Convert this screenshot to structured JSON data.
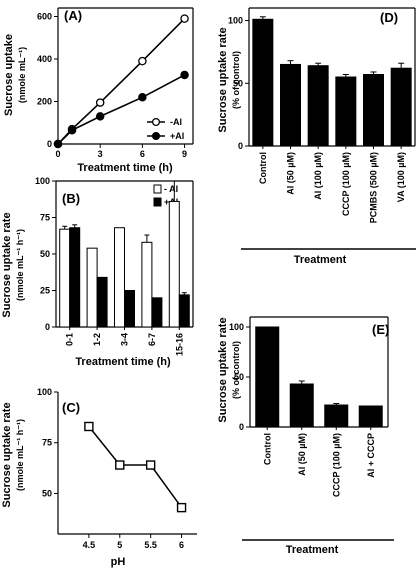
{
  "chart_data": [
    {
      "panel": "(A)",
      "type": "line",
      "xlabel": "Treatment time (h)",
      "ylabel": "Sucrose uptake",
      "yunit": "(nmole mL⁻¹)",
      "xlim": [
        0,
        9.6
      ],
      "ylim": [
        0,
        640
      ],
      "xticks": [
        0,
        3,
        6,
        9
      ],
      "yticks": [
        0,
        200,
        400,
        600
      ],
      "legend_position": "bottom-right",
      "series": [
        {
          "name": "-Al",
          "marker": "open",
          "x": [
            0,
            1,
            3,
            6,
            9
          ],
          "y": [
            0,
            70,
            195,
            390,
            590
          ],
          "err": [
            0,
            0,
            0,
            0,
            0
          ]
        },
        {
          "name": "+Al",
          "marker": "filled",
          "x": [
            0,
            1,
            3,
            6,
            9
          ],
          "y": [
            0,
            65,
            130,
            220,
            325
          ],
          "err": [
            0,
            0,
            12,
            10,
            0
          ]
        }
      ]
    },
    {
      "panel": "(B)",
      "type": "bar",
      "xlabel": "Treatment time (h)",
      "ylabel": "Sucrose uptake rate",
      "yunit": "(nmole mL⁻¹ h⁻¹)",
      "ylim": [
        0,
        100
      ],
      "yticks": [
        0,
        25,
        50,
        75,
        100
      ],
      "categories": [
        "0-1",
        "1-2",
        "3-4",
        "6-7",
        "15-16"
      ],
      "legend_position": "top-right",
      "series": [
        {
          "name": "- Al",
          "fill": "#ffffff",
          "values": [
            67,
            54,
            68,
            58,
            86
          ],
          "err": [
            2,
            0,
            0,
            5,
            14
          ]
        },
        {
          "name": "+Al",
          "fill": "#000000",
          "values": [
            68,
            34,
            25,
            20,
            22
          ],
          "err": [
            2,
            0,
            0,
            0,
            1.5
          ]
        }
      ]
    },
    {
      "panel": "(C)",
      "type": "line",
      "xlabel": "pH",
      "ylabel": "Sucrose uptake rate",
      "yunit": "(nmole mL⁻¹ h⁻¹)",
      "xlim": [
        4.0,
        6.25
      ],
      "ylim": [
        30,
        100
      ],
      "xticks": [
        4.5,
        5.0,
        5.5,
        6.0
      ],
      "yticks": [
        50,
        75,
        100
      ],
      "series": [
        {
          "name": "",
          "marker": "open-square",
          "x": [
            4.5,
            5.0,
            5.5,
            6.0
          ],
          "y": [
            83,
            64,
            64,
            43
          ],
          "err": [
            0,
            0,
            2,
            0
          ]
        }
      ]
    },
    {
      "panel": "(D)",
      "type": "bar",
      "xlabel": "Treatment",
      "ylabel": "Sucrose uptake rate",
      "yunit": "(% of control)",
      "ylim": [
        0,
        110
      ],
      "yticks": [
        0,
        50,
        100
      ],
      "categories": [
        "Control",
        "Al (50 µM)",
        "Al (100 µM)",
        "CCCP (100 µM)",
        "PCMBS (500 µM)",
        "VA (100 µM)"
      ],
      "values": [
        101,
        65,
        64,
        55,
        57,
        62
      ],
      "err": [
        2,
        3,
        2,
        2,
        2,
        4
      ]
    },
    {
      "panel": "(E)",
      "type": "bar",
      "xlabel": "Treatment",
      "ylabel": "Sucrose uptake rate",
      "yunit": "(% of control)",
      "ylim": [
        0,
        110
      ],
      "yticks": [
        0,
        50,
        100
      ],
      "categories": [
        "Control",
        "Al (50 µM)",
        "CCCP (100 µM)",
        "Al + CCCP"
      ],
      "values": [
        100,
        43,
        22,
        21
      ],
      "err": [
        0,
        3,
        1.5,
        0
      ]
    }
  ]
}
